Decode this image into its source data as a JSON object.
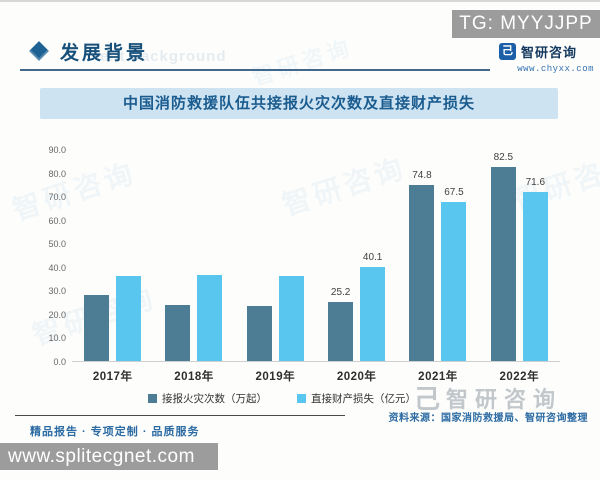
{
  "page": {
    "tg_badge": "TG: MYYJJPP",
    "section_header": {
      "title": "发展背景",
      "watermark_text": "ent background"
    },
    "brand": {
      "logo_glyph": "己",
      "name": "智研咨询",
      "url": "www.chyxx.com"
    },
    "watermark_brand": "智研咨询",
    "footer": {
      "services": "精品报告 · 专项定制 · 品质服务",
      "source": "资料来源：国家消防救援局、智研咨询整理",
      "site_url": "www.splitecgnet.com"
    }
  },
  "colors": {
    "badge_gray": "#9c9c9c",
    "accent_blue": "#1b5c8f",
    "title_bar_bg": "#cde3f2",
    "bar_dark": "#4d7d94",
    "bar_light": "#58c6ef",
    "source_text": "#2d6ca3",
    "watermark_gray": "#c2c7cb"
  },
  "chart_data": {
    "type": "bar",
    "title": "中国消防救援队伍共接报火灾次数及直接财产损失",
    "categories": [
      "2017年",
      "2018年",
      "2019年",
      "2020年",
      "2021年",
      "2022年"
    ],
    "series": [
      {
        "name": "接报火灾次数（万起）",
        "color": "#4d7d94",
        "values": [
          28.1,
          23.7,
          23.3,
          25.2,
          74.8,
          82.5
        ]
      },
      {
        "name": "直接财产损失（亿元）",
        "color": "#58c6ef",
        "values": [
          36.0,
          36.7,
          36.1,
          40.1,
          67.5,
          71.6
        ]
      }
    ],
    "data_labels_visible": [
      false,
      false,
      false,
      true,
      true,
      true
    ],
    "ylim": [
      0,
      90
    ],
    "yticks": [
      "90.0",
      "80.0",
      "70.0",
      "60.0",
      "50.0",
      "40.0",
      "30.0",
      "20.0",
      "10.0",
      "0.0"
    ],
    "grid": false,
    "legend_position": "bottom"
  }
}
